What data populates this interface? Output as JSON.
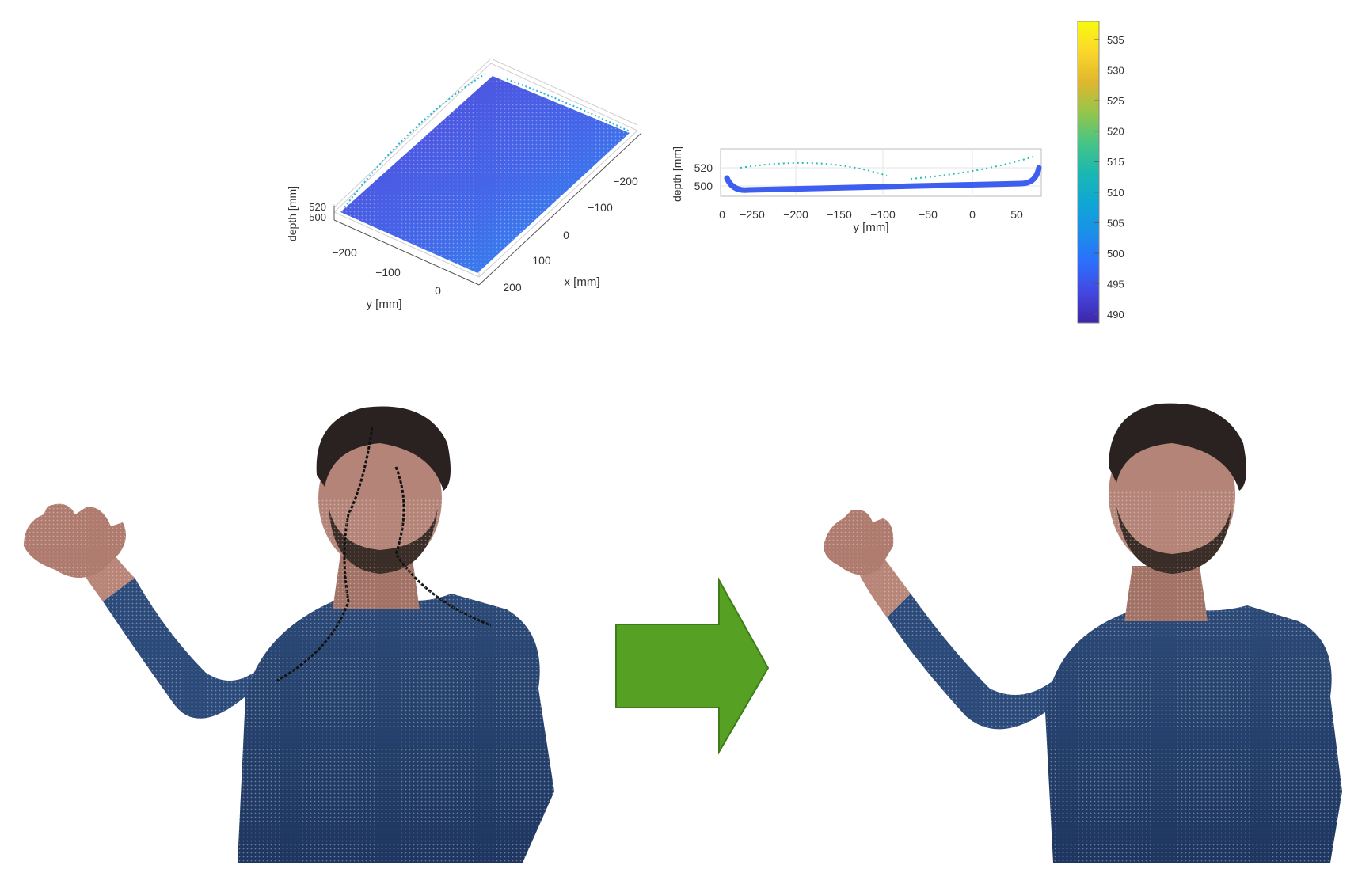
{
  "plot3d": {
    "zlabel": "depth [mm]",
    "ylabel": "y [mm]",
    "xlabel": "x [mm]",
    "z_ticks": [
      "520",
      "500"
    ],
    "y_ticks": [
      "−200",
      "−100",
      "0"
    ],
    "x_ticks": [
      "−200",
      "−100",
      "0",
      "100",
      "200"
    ]
  },
  "plot_side": {
    "ylabel": "depth [mm]",
    "xlabel": "y [mm]",
    "y_ticks": [
      "520",
      "500"
    ],
    "x_ticks": [
      "0",
      "−250",
      "−200",
      "−150",
      "−100",
      "−50",
      "0",
      "50"
    ]
  },
  "colorbar": {
    "ticks": [
      "535",
      "530",
      "525",
      "520",
      "515",
      "510",
      "505",
      "500",
      "495",
      "490"
    ],
    "colormap": [
      "#3e26a8",
      "#4347e0",
      "#2c6efd",
      "#1a90e9",
      "#0fa7d4",
      "#1bb8b0",
      "#48c585",
      "#97c54a",
      "#e0b72d",
      "#fbd72b",
      "#f8fa0d"
    ]
  },
  "arrow": {
    "color": "#56a023",
    "edge": "#3e7d18"
  },
  "panels": [
    "before",
    "after"
  ]
}
